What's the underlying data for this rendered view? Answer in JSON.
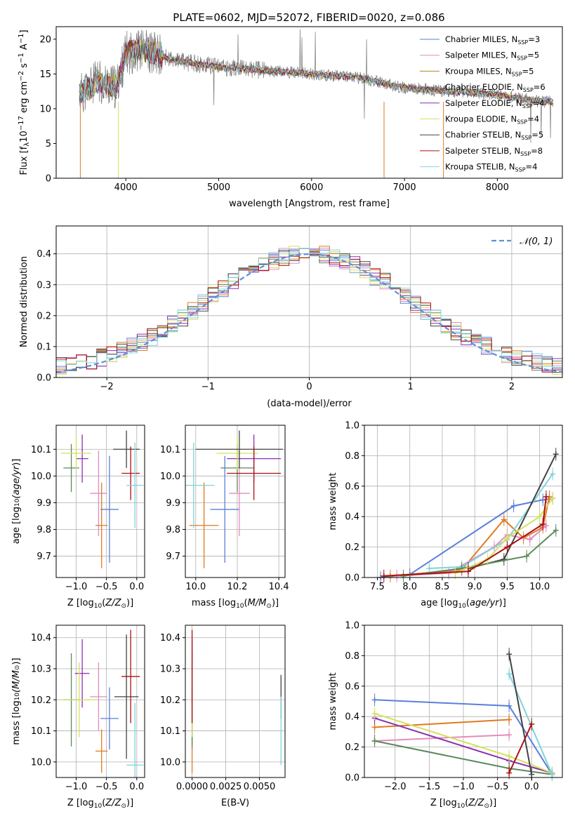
{
  "figure": {
    "title": "PLATE=0602, MJD=52072, FIBERID=0020, z=0.086"
  },
  "colors": {
    "chabrier_miles": "#5b7fd9",
    "salpeter_miles": "#e48bbf",
    "kroupa_miles": "#a98a1e",
    "chabrier_elodie": "#5a8a5a",
    "salpeter_elodie": "#8e2fb0",
    "kroupa_elodie": "#d4e15a",
    "chabrier_stelib": "#444444",
    "salpeter_stelib": "#aa1111",
    "kroupa_stelib": "#7fd4dc",
    "orange": "#e07a20",
    "dashed_normal": "#5b8fd9"
  },
  "chart_data": [
    {
      "id": "spectrum",
      "type": "line",
      "title": "PLATE=0602, MJD=52072, FIBERID=0020, z=0.086",
      "xlabel": "wavelength [Angstrom, rest frame]",
      "ylabel": "Flux [f",
      "xlim": [
        3250,
        8700
      ],
      "ylim": [
        0,
        21.8
      ],
      "xticks": [
        4000,
        5000,
        6000,
        7000,
        8000
      ],
      "yticks": [
        0,
        5,
        10,
        15,
        20
      ],
      "legend": [
        "Chabrier MILES, N",
        "Salpeter MILES, N",
        "Kroupa MILES, N",
        "Chabrier ELODIE, N",
        "Salpeter ELODIE, N",
        "Kroupa ELODIE, N",
        "Chabrier STELIB, N",
        "Salpeter STELIB, N",
        "Kroupa STELIB, N"
      ],
      "legend_nssp": [
        "3",
        "5",
        "5",
        "6",
        "4",
        "4",
        "5",
        "8",
        "4"
      ],
      "legend_placement": "upper right",
      "data_trend": {
        "x": [
          3500,
          3700,
          3900,
          4000,
          4200,
          4500,
          5000,
          5500,
          6000,
          6500,
          7000,
          7500,
          8000,
          8500
        ],
        "y": [
          12,
          14,
          13,
          18,
          18.5,
          17,
          16,
          15.5,
          15,
          14.5,
          13,
          12.5,
          12,
          11
        ]
      },
      "drops_to_zero": [
        3510,
        3920,
        6780,
        7420
      ]
    },
    {
      "id": "residual_hist",
      "type": "line",
      "xlabel": "(data-model)/error",
      "ylabel": "Normed distribution",
      "xlim": [
        -2.5,
        2.5
      ],
      "ylim": [
        0,
        0.49
      ],
      "xticks": [
        -2,
        -1,
        0,
        1,
        2
      ],
      "yticks": [
        0.0,
        0.1,
        0.2,
        0.3,
        0.4
      ],
      "legend": [
        "𝒩(0, 1)"
      ],
      "legend_placement": "upper right",
      "bin_width": 0.1,
      "curve": "standard normal"
    },
    {
      "id": "age_vs_Z",
      "type": "scatter",
      "xlabel": "Z [log",
      "ylabel": "age  [log",
      "xlim": [
        -1.33,
        0.13
      ],
      "ylim": [
        9.62,
        10.19
      ],
      "xticks": [
        -1.0,
        -0.5,
        0.0
      ],
      "yticks": [
        9.7,
        9.8,
        9.9,
        10.0,
        10.1
      ],
      "points": [
        {
          "x": -0.45,
          "y": 9.875,
          "xerr": 0.15,
          "yerr": 0.2,
          "c": "chabrier_miles"
        },
        {
          "x": -0.63,
          "y": 9.935,
          "xerr": 0.14,
          "yerr": 0.16,
          "c": "salpeter_miles"
        },
        {
          "x": -0.58,
          "y": 9.815,
          "xerr": 0.1,
          "yerr": 0.16,
          "c": "orange"
        },
        {
          "x": -1.08,
          "y": 10.03,
          "xerr": 0.13,
          "yerr": 0.09,
          "c": "chabrier_elodie"
        },
        {
          "x": -0.9,
          "y": 10.065,
          "xerr": 0.1,
          "yerr": 0.09,
          "c": "salpeter_elodie"
        },
        {
          "x": -1.0,
          "y": 10.085,
          "xerr": 0.25,
          "yerr": 0.06,
          "c": "kroupa_elodie"
        },
        {
          "x": -0.17,
          "y": 10.1,
          "xerr": 0.22,
          "yerr": 0.07,
          "c": "chabrier_stelib"
        },
        {
          "x": -0.1,
          "y": 10.01,
          "xerr": 0.15,
          "yerr": 0.1,
          "c": "salpeter_stelib"
        },
        {
          "x": -0.03,
          "y": 9.965,
          "xerr": 0.14,
          "yerr": 0.16,
          "c": "kroupa_stelib"
        }
      ]
    },
    {
      "id": "age_vs_mass",
      "type": "scatter",
      "xlabel": "mass [log",
      "ylabel": "",
      "xlim": [
        9.95,
        10.43
      ],
      "ylim": [
        9.62,
        10.19
      ],
      "xticks": [
        10.0,
        10.2,
        10.4
      ],
      "yticks": [
        9.7,
        9.8,
        9.9,
        10.0,
        10.1
      ],
      "points": [
        {
          "x": 10.14,
          "y": 9.875,
          "xerr": 0.07,
          "yerr": 0.2,
          "c": "chabrier_miles"
        },
        {
          "x": 10.21,
          "y": 9.935,
          "xerr": 0.05,
          "yerr": 0.16,
          "c": "salpeter_miles"
        },
        {
          "x": 10.04,
          "y": 9.815,
          "xerr": 0.07,
          "yerr": 0.16,
          "c": "orange"
        },
        {
          "x": 10.2,
          "y": 10.03,
          "xerr": 0.08,
          "yerr": 0.09,
          "c": "chabrier_elodie"
        },
        {
          "x": 10.28,
          "y": 10.065,
          "xerr": 0.13,
          "yerr": 0.09,
          "c": "salpeter_elodie"
        },
        {
          "x": 10.2,
          "y": 10.085,
          "xerr": 0.1,
          "yerr": 0.06,
          "c": "kroupa_elodie"
        },
        {
          "x": 10.21,
          "y": 10.1,
          "xerr": 0.21,
          "yerr": 0.07,
          "c": "chabrier_stelib"
        },
        {
          "x": 10.28,
          "y": 10.01,
          "xerr": 0.13,
          "yerr": 0.1,
          "c": "salpeter_stelib"
        },
        {
          "x": 9.99,
          "y": 9.965,
          "xerr": 0.1,
          "yerr": 0.16,
          "c": "kroupa_stelib"
        }
      ]
    },
    {
      "id": "mass_weight_vs_age",
      "type": "line",
      "xlabel": "age  [log",
      "ylabel": "mass weight",
      "xlim": [
        7.3,
        10.35
      ],
      "ylim": [
        0,
        1.0
      ],
      "xticks": [
        7.5,
        8.0,
        8.5,
        9.0,
        9.5,
        10.0
      ],
      "yticks": [
        0.0,
        0.2,
        0.4,
        0.6,
        0.8,
        1.0
      ],
      "series": [
        {
          "c": "chabrier_miles",
          "x": [
            7.55,
            8.0,
            9.6,
            10.05,
            10.2
          ],
          "y": [
            0.0,
            0.02,
            0.47,
            0.51,
            0.52
          ]
        },
        {
          "c": "orange",
          "x": [
            7.7,
            8.8,
            9.45,
            9.75,
            10.05,
            10.15
          ],
          "y": [
            0.01,
            0.05,
            0.38,
            0.26,
            0.33,
            0.53
          ]
        },
        {
          "c": "salpeter_miles",
          "x": [
            7.8,
            8.6,
            9.3,
            9.5,
            9.85,
            10.1
          ],
          "y": [
            0.01,
            0.03,
            0.2,
            0.28,
            0.25,
            0.34
          ]
        },
        {
          "c": "kroupa_stelib",
          "x": [
            8.3,
            8.8,
            9.5,
            10.2
          ],
          "y": [
            0.06,
            0.07,
            0.25,
            0.68
          ]
        },
        {
          "c": "chabrier_stelib",
          "x": [
            8.9,
            9.45,
            10.25
          ],
          "y": [
            0.06,
            0.12,
            0.81
          ]
        },
        {
          "c": "chabrier_elodie",
          "x": [
            7.9,
            8.8,
            9.8,
            10.25
          ],
          "y": [
            0.01,
            0.06,
            0.14,
            0.31
          ]
        },
        {
          "c": "kroupa_elodie",
          "x": [
            8.7,
            9.2,
            9.5,
            10.0,
            10.2
          ],
          "y": [
            0.03,
            0.12,
            0.26,
            0.4,
            0.52
          ]
        },
        {
          "c": "salpeter_stelib",
          "x": [
            7.6,
            8.9,
            9.5,
            10.05,
            10.1
          ],
          "y": [
            0.01,
            0.04,
            0.2,
            0.35,
            0.53
          ]
        }
      ]
    },
    {
      "id": "mass_vs_Z",
      "type": "scatter",
      "xlabel": "Z [log",
      "ylabel": "mass [log",
      "xlim": [
        -1.33,
        0.13
      ],
      "ylim": [
        9.95,
        10.44
      ],
      "xticks": [
        -1.0,
        -0.5,
        0.0
      ],
      "yticks": [
        10.0,
        10.1,
        10.2,
        10.3,
        10.4
      ],
      "points": [
        {
          "x": -0.45,
          "y": 10.14,
          "xerr": 0.15,
          "yerr": 0.1,
          "c": "chabrier_miles"
        },
        {
          "x": -0.63,
          "y": 10.21,
          "xerr": 0.14,
          "yerr": 0.11,
          "c": "salpeter_miles"
        },
        {
          "x": -0.58,
          "y": 10.035,
          "xerr": 0.1,
          "yerr": 0.07,
          "c": "orange"
        },
        {
          "x": -1.08,
          "y": 10.2,
          "xerr": 0.13,
          "yerr": 0.15,
          "c": "chabrier_elodie"
        },
        {
          "x": -0.9,
          "y": 10.285,
          "xerr": 0.12,
          "yerr": 0.11,
          "c": "salpeter_elodie"
        },
        {
          "x": -0.95,
          "y": 10.2,
          "xerr": 0.3,
          "yerr": 0.12,
          "c": "kroupa_elodie"
        },
        {
          "x": -0.17,
          "y": 10.21,
          "xerr": 0.2,
          "yerr": 0.2,
          "c": "chabrier_stelib"
        },
        {
          "x": -0.1,
          "y": 10.275,
          "xerr": 0.15,
          "yerr": 0.15,
          "c": "salpeter_stelib"
        },
        {
          "x": -0.03,
          "y": 9.99,
          "xerr": 0.14,
          "yerr": 0.2,
          "c": "kroupa_stelib"
        }
      ]
    },
    {
      "id": "mass_vs_ebv",
      "type": "scatter",
      "xlabel": "E(B-V)",
      "ylabel": "",
      "xlim": [
        -0.0005,
        0.0069
      ],
      "ylim": [
        9.95,
        10.44
      ],
      "xticks": [
        0.0,
        0.0025,
        0.005
      ],
      "xtick_labels": [
        "0.0000",
        "0.0025",
        "0.0050"
      ],
      "yticks": [
        10.0,
        10.1,
        10.2,
        10.3,
        10.4
      ],
      "points": [
        {
          "x": 0.0,
          "y": 10.14,
          "yerr": 0.1,
          "c": "chabrier_miles"
        },
        {
          "x": 0.0,
          "y": 10.21,
          "yerr": 0.11,
          "c": "salpeter_miles"
        },
        {
          "x": 0.0,
          "y": 10.035,
          "yerr": 0.07,
          "c": "orange"
        },
        {
          "x": 0.0,
          "y": 10.2,
          "yerr": 0.15,
          "c": "chabrier_elodie"
        },
        {
          "x": 0.0,
          "y": 10.285,
          "yerr": 0.11,
          "c": "salpeter_elodie"
        },
        {
          "x": 0.0,
          "y": 10.2,
          "yerr": 0.12,
          "c": "kroupa_elodie"
        },
        {
          "x": 0.0,
          "y": 10.275,
          "yerr": 0.15,
          "c": "salpeter_stelib"
        },
        {
          "x": 0.0066,
          "y": 10.21,
          "yerr": 0.07,
          "c": "chabrier_stelib"
        },
        {
          "x": 0.0066,
          "y": 10.1,
          "yerr": 0.11,
          "c": "kroupa_stelib"
        }
      ]
    },
    {
      "id": "mass_weight_vs_Z",
      "type": "line",
      "xlabel": "Z [log",
      "ylabel": "mass weight",
      "xlim": [
        -2.45,
        0.45
      ],
      "ylim": [
        0,
        1.0
      ],
      "xticks": [
        -2.0,
        -1.5,
        -1.0,
        -0.5,
        0.0
      ],
      "yticks": [
        0.0,
        0.2,
        0.4,
        0.6,
        0.8,
        1.0
      ],
      "series": [
        {
          "c": "chabrier_miles",
          "x": [
            -2.3,
            -0.33,
            0.3
          ],
          "y": [
            0.51,
            0.47,
            0.02
          ]
        },
        {
          "c": "orange",
          "x": [
            -2.3,
            -0.33
          ],
          "y": [
            0.33,
            0.38
          ]
        },
        {
          "c": "salpeter_miles",
          "x": [
            -2.3,
            -0.33
          ],
          "y": [
            0.24,
            0.28
          ]
        },
        {
          "c": "salpeter_elodie",
          "x": [
            -2.3,
            -0.33,
            0.3
          ],
          "y": [
            0.39,
            0.11,
            0.03
          ]
        },
        {
          "c": "kroupa_elodie",
          "x": [
            -2.3,
            -0.33,
            0.3
          ],
          "y": [
            0.42,
            0.14,
            0.03
          ]
        },
        {
          "c": "chabrier_elodie",
          "x": [
            -2.3,
            -0.33,
            0.3
          ],
          "y": [
            0.24,
            0.06,
            0.02
          ]
        },
        {
          "c": "kroupa_stelib",
          "x": [
            -0.33,
            0.3
          ],
          "y": [
            0.68,
            0.02
          ]
        },
        {
          "c": "chabrier_stelib",
          "x": [
            -0.33,
            0.0
          ],
          "y": [
            0.81,
            0.02
          ]
        },
        {
          "c": "salpeter_stelib",
          "x": [
            -0.33,
            0.0
          ],
          "y": [
            0.03,
            0.35
          ]
        }
      ]
    }
  ]
}
